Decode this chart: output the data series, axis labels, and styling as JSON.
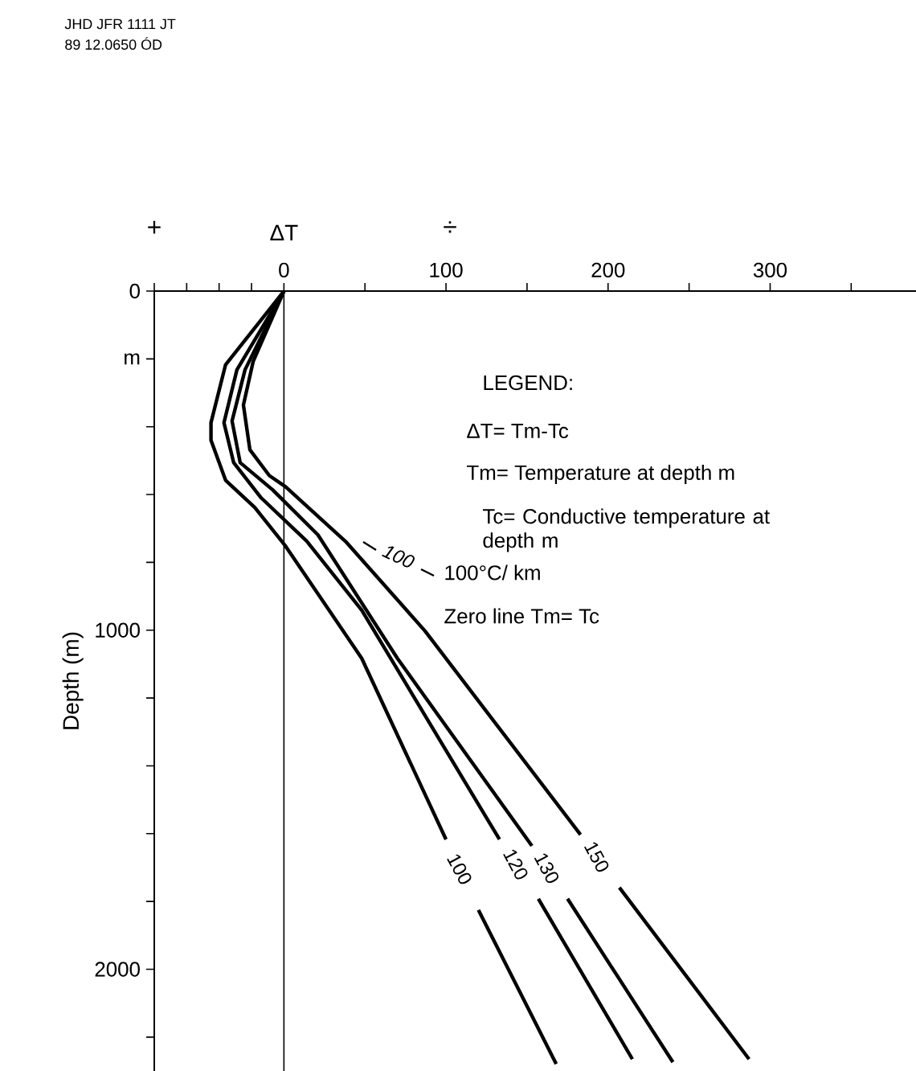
{
  "chart_data": {
    "type": "line",
    "xlabel": "ΔT",
    "ylabel": "Depth (m)",
    "xlim": [
      -80,
      390
    ],
    "ylim": [
      2300,
      0
    ],
    "xticks": [
      {
        "value": -80,
        "label": null
      },
      {
        "value": -60,
        "label": null
      },
      {
        "value": -40,
        "label": null
      },
      {
        "value": -20,
        "label": null
      },
      0,
      {
        "value": 50,
        "label": null
      },
      100,
      {
        "value": 150,
        "label": null
      },
      200,
      {
        "value": 250,
        "label": null
      },
      300,
      {
        "value": 350,
        "label": null
      }
    ],
    "yticks": [
      0,
      {
        "value": 200,
        "label": "m"
      },
      {
        "value": 400,
        "label": null
      },
      {
        "value": 600,
        "label": null
      },
      {
        "value": 800,
        "label": null
      },
      1000,
      {
        "value": 1200,
        "label": null
      },
      {
        "value": 1400,
        "label": null
      },
      {
        "value": 1600,
        "label": null
      },
      {
        "value": 1800,
        "label": null
      },
      2000,
      {
        "value": 2200,
        "label": null
      }
    ],
    "grid": false,
    "legend": false,
    "marker": "none",
    "line_style": "solid",
    "ref_lines": [
      {
        "axis": "x",
        "value": 0,
        "label": null,
        "color": "#000000"
      }
    ],
    "annotations": [
      "JHD JFR 1111 JT",
      "89 12.0650 ÓD",
      "+",
      "÷",
      "LEGEND:",
      "ΔT= Tm-Tc",
      "Tm= Temperature at depth m",
      "Tc= Conductive temperature at depth m",
      "100",
      "100°C/ km",
      "Zero line Tm= Tc"
    ],
    "series": [
      {
        "name": "100",
        "color": "#000000",
        "x": [
          0,
          -36,
          -45,
          -45,
          -36,
          -18,
          1,
          48,
          100,
          null,
          120,
          168
        ],
        "values": [
          0,
          217,
          388,
          440,
          558,
          638,
          752,
          1083,
          1617,
          null,
          1825,
          2279
        ]
      },
      {
        "name": "120",
        "color": "#000000",
        "x": [
          0,
          -29,
          -37,
          -31,
          -14,
          14,
          48,
          133,
          null,
          157,
          215
        ],
        "values": [
          0,
          232,
          388,
          506,
          610,
          737,
          941,
          1617,
          null,
          1792,
          2265
        ]
      },
      {
        "name": "130",
        "color": "#000000",
        "x": [
          0,
          -24,
          -32,
          -27,
          -7,
          21,
          70,
          153,
          null,
          175,
          240
        ],
        "values": [
          0,
          232,
          383,
          506,
          586,
          719,
          1083,
          1636,
          null,
          1792,
          2274
        ]
      },
      {
        "name": "150",
        "color": "#000000",
        "x": [
          0,
          -19,
          -25,
          -21,
          -9,
          1,
          38,
          87,
          183,
          null,
          207,
          287
        ],
        "values": [
          0,
          208,
          336,
          468,
          544,
          577,
          738,
          1002,
          1603,
          null,
          1759,
          2265
        ]
      }
    ]
  }
}
